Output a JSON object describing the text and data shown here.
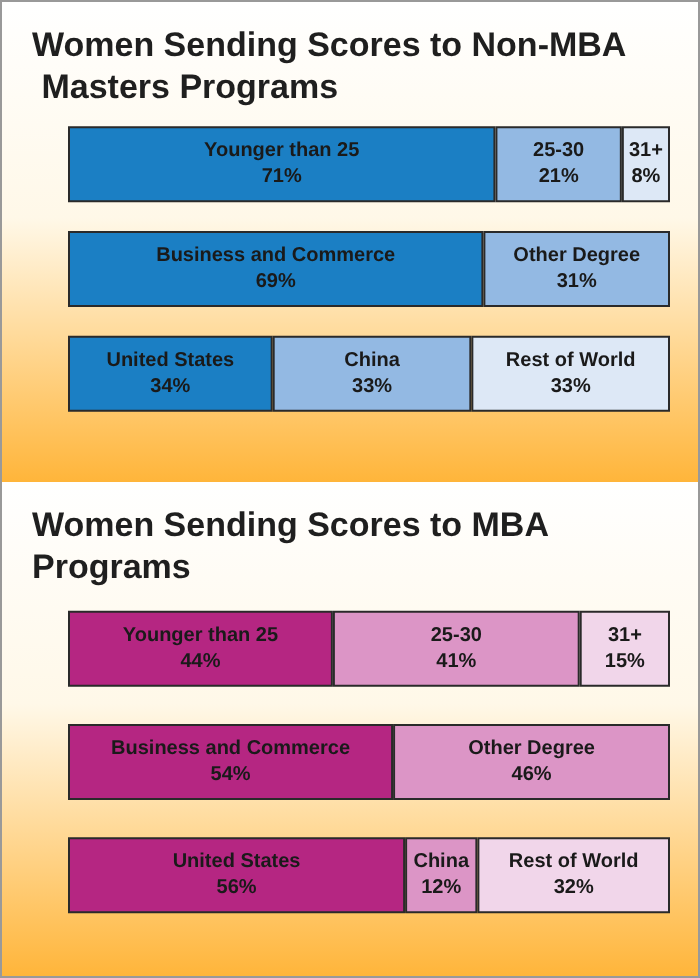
{
  "chart_data": [
    {
      "type": "bar",
      "title": "Women Sending Scores to Non-MBA Masters Programs",
      "orientation": "horizontal",
      "stacked": true,
      "legend": false,
      "categories": [
        null,
        null,
        null
      ],
      "series": [
        {
          "name": "Younger than 25",
          "color": "#1b7fc4",
          "values": [
            71,
            null,
            null
          ],
          "value_labels": [
            "71%",
            null,
            null
          ]
        },
        {
          "name": "25-30",
          "color": "#93b9e3",
          "values": [
            21,
            null,
            null
          ],
          "value_labels": [
            "21%",
            null,
            null
          ]
        },
        {
          "name": "31+",
          "color": "#dde8f6",
          "values": [
            8,
            null,
            null
          ],
          "value_labels": [
            "8%",
            null,
            null
          ]
        },
        {
          "name": "Business and Commerce",
          "color": "#1b7fc4",
          "values": [
            null,
            69,
            null
          ],
          "value_labels": [
            null,
            "69%",
            null
          ]
        },
        {
          "name": "Other Degree",
          "color": "#93b9e3",
          "values": [
            null,
            31,
            null
          ],
          "value_labels": [
            null,
            "31%",
            null
          ]
        },
        {
          "name": "United States",
          "color": "#1b7fc4",
          "values": [
            null,
            null,
            34
          ],
          "value_labels": [
            null,
            null,
            "34%"
          ]
        },
        {
          "name": "China",
          "color": "#93b9e3",
          "values": [
            null,
            null,
            33
          ],
          "value_labels": [
            null,
            null,
            "33%"
          ]
        },
        {
          "name": "Rest of World",
          "color": "#dde8f6",
          "values": [
            null,
            null,
            33
          ],
          "value_labels": [
            null,
            null,
            "33%"
          ]
        }
      ]
    },
    {
      "type": "bar",
      "title": "Women Sending Scores to MBA Programs",
      "orientation": "horizontal",
      "stacked": true,
      "legend": false,
      "categories": [
        null,
        null,
        null
      ],
      "series": [
        {
          "name": "Younger than 25",
          "color": "#b52682",
          "values": [
            44,
            null,
            null
          ],
          "value_labels": [
            "44%",
            null,
            null
          ]
        },
        {
          "name": "25-30",
          "color": "#dc95c6",
          "values": [
            41,
            null,
            null
          ],
          "value_labels": [
            "41%",
            null,
            null
          ]
        },
        {
          "name": "31+",
          "color": "#f1d6ea",
          "values": [
            15,
            null,
            null
          ],
          "value_labels": [
            "15%",
            null,
            null
          ]
        },
        {
          "name": "Business and Commerce",
          "color": "#b52682",
          "values": [
            null,
            54,
            null
          ],
          "value_labels": [
            null,
            "54%",
            null
          ]
        },
        {
          "name": "Other Degree",
          "color": "#dc95c6",
          "values": [
            null,
            46,
            null
          ],
          "value_labels": [
            null,
            "46%",
            null
          ]
        },
        {
          "name": "United States",
          "color": "#b52682",
          "values": [
            null,
            null,
            56
          ],
          "value_labels": [
            null,
            null,
            "56%"
          ]
        },
        {
          "name": "China",
          "color": "#dc95c6",
          "values": [
            null,
            null,
            12
          ],
          "value_labels": [
            null,
            null,
            "12%"
          ]
        },
        {
          "name": "Rest of World",
          "color": "#f1d6ea",
          "values": [
            null,
            null,
            32
          ],
          "value_labels": [
            null,
            null,
            "32%"
          ]
        }
      ]
    }
  ]
}
